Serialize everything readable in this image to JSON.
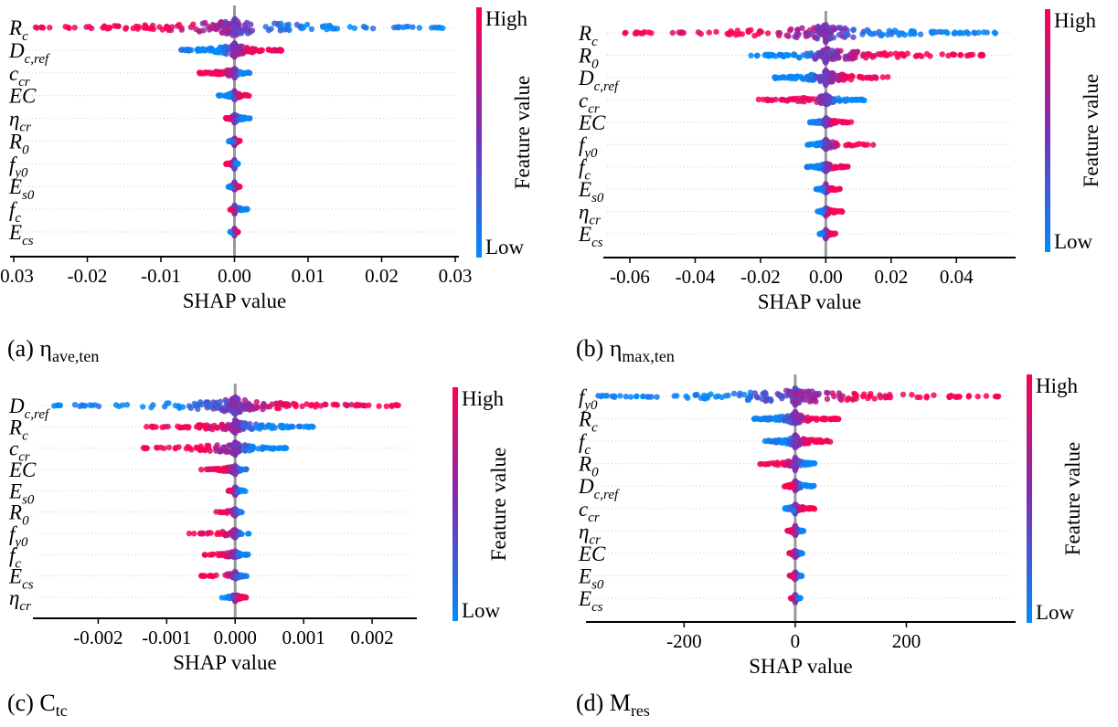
{
  "colors": {
    "high": "#ff0051",
    "low": "#008bfb",
    "axis": "#000000",
    "zero": "#999999",
    "grid": "#cccccc"
  },
  "colorbar": {
    "high_label": "High",
    "low_label": "Low",
    "title": "Feature value"
  },
  "chart_data": [
    {
      "type": "scatter",
      "subtype": "shap-beeswarm",
      "caption": {
        "main": "(a) η",
        "sub": "ave,ten"
      },
      "xlabel": "SHAP value",
      "xlim": [
        -0.03,
        0.03
      ],
      "ticks": [
        -0.03,
        -0.02,
        -0.01,
        0.0,
        0.01,
        0.02,
        0.03
      ],
      "tick_labels": [
        "-0.03",
        "-0.02",
        "-0.01",
        "0.00",
        "0.01",
        "0.02",
        "0.03"
      ],
      "features": [
        {
          "base": "R",
          "sub": "c",
          "min": -0.0285,
          "max": 0.029,
          "width": 1.0,
          "trend": "neg"
        },
        {
          "base": "D",
          "sub": "c,ref",
          "min": -0.0075,
          "max": 0.0068,
          "width": 0.7,
          "trend": "pos"
        },
        {
          "base": "c",
          "sub": "cr",
          "min": -0.0052,
          "max": 0.0021,
          "width": 0.35,
          "trend": "neg"
        },
        {
          "base": "EC",
          "sub": "",
          "min": -0.0022,
          "max": 0.0021,
          "width": 0.25,
          "trend": "pos"
        },
        {
          "base": "η",
          "sub": "cr",
          "min": -0.0012,
          "max": 0.0023,
          "width": 0.25,
          "trend": "neg"
        },
        {
          "base": "R",
          "sub": "0",
          "min": -0.0008,
          "max": 0.0008,
          "width": 0.2,
          "trend": "pos"
        },
        {
          "base": "f",
          "sub": "y0",
          "min": -0.0012,
          "max": 0.0005,
          "width": 0.2,
          "trend": "neg"
        },
        {
          "base": "E",
          "sub": "s0",
          "min": -0.0009,
          "max": 0.0008,
          "width": 0.2,
          "trend": "pos"
        },
        {
          "base": "f",
          "sub": "c",
          "min": -0.0006,
          "max": 0.0019,
          "width": 0.2,
          "trend": "neg"
        },
        {
          "base": "E",
          "sub": "cs",
          "min": -0.0006,
          "max": 0.0005,
          "width": 0.15,
          "trend": "pos"
        }
      ]
    },
    {
      "type": "scatter",
      "subtype": "shap-beeswarm",
      "caption": {
        "main": "(b) η",
        "sub": "max,ten"
      },
      "xlabel": "SHAP value",
      "xlim": [
        -0.067,
        0.057
      ],
      "ticks": [
        -0.06,
        -0.04,
        -0.02,
        0.0,
        0.02,
        0.04
      ],
      "tick_labels": [
        "-0.06",
        "-0.04",
        "-0.02",
        "0.00",
        "0.02",
        "0.04"
      ],
      "features": [
        {
          "base": "R",
          "sub": "c",
          "min": -0.065,
          "max": 0.052,
          "width": 1.0,
          "trend": "neg"
        },
        {
          "base": "R",
          "sub": "0",
          "min": -0.024,
          "max": 0.052,
          "width": 0.75,
          "trend": "pos"
        },
        {
          "base": "D",
          "sub": "c,ref",
          "min": -0.016,
          "max": 0.02,
          "width": 0.75,
          "trend": "pos"
        },
        {
          "base": "c",
          "sub": "cr",
          "min": -0.021,
          "max": 0.012,
          "width": 0.45,
          "trend": "neg"
        },
        {
          "base": "EC",
          "sub": "",
          "min": -0.005,
          "max": 0.008,
          "width": 0.3,
          "trend": "pos"
        },
        {
          "base": "f",
          "sub": "y0",
          "min": -0.006,
          "max": 0.016,
          "width": 0.3,
          "trend": "pos"
        },
        {
          "base": "f",
          "sub": "c",
          "min": -0.006,
          "max": 0.008,
          "width": 0.25,
          "trend": "pos"
        },
        {
          "base": "E",
          "sub": "s0",
          "min": -0.003,
          "max": 0.005,
          "width": 0.2,
          "trend": "pos"
        },
        {
          "base": "η",
          "sub": "cr",
          "min": -0.003,
          "max": 0.005,
          "width": 0.2,
          "trend": "pos"
        },
        {
          "base": "E",
          "sub": "cs",
          "min": -0.002,
          "max": 0.003,
          "width": 0.2,
          "trend": "pos"
        }
      ]
    },
    {
      "type": "scatter",
      "subtype": "shap-beeswarm",
      "caption": {
        "main": "(c) C",
        "sub": "tc"
      },
      "xlabel": "SHAP value",
      "xlim": [
        -0.0029,
        0.0026
      ],
      "ticks": [
        -0.002,
        -0.001,
        0.0,
        0.001,
        0.002
      ],
      "tick_labels": [
        "-0.002",
        "-0.001",
        "0.000",
        "0.001",
        "0.002"
      ],
      "features": [
        {
          "base": "D",
          "sub": "c,ref",
          "min": -0.0027,
          "max": 0.0024,
          "width": 1.0,
          "trend": "pos"
        },
        {
          "base": "R",
          "sub": "c",
          "min": -0.0013,
          "max": 0.00115,
          "width": 0.65,
          "trend": "neg"
        },
        {
          "base": "c",
          "sub": "cr",
          "min": -0.00155,
          "max": 0.00077,
          "width": 0.65,
          "trend": "neg"
        },
        {
          "base": "EC",
          "sub": "",
          "min": -0.0005,
          "max": 0.0002,
          "width": 0.3,
          "trend": "neg"
        },
        {
          "base": "E",
          "sub": "s0",
          "min": -0.0001,
          "max": 0.00015,
          "width": 0.2,
          "trend": "neg"
        },
        {
          "base": "R",
          "sub": "0",
          "min": -0.0003,
          "max": 0.0001,
          "width": 0.2,
          "trend": "neg"
        },
        {
          "base": "f",
          "sub": "y0",
          "min": -0.0007,
          "max": 0.0002,
          "width": 0.2,
          "trend": "neg"
        },
        {
          "base": "f",
          "sub": "c",
          "min": -0.0005,
          "max": 0.0002,
          "width": 0.2,
          "trend": "neg"
        },
        {
          "base": "E",
          "sub": "cs",
          "min": -0.0005,
          "max": 0.0002,
          "width": 0.2,
          "trend": "neg"
        },
        {
          "base": "η",
          "sub": "cr",
          "min": -0.0002,
          "max": 0.0002,
          "width": 0.2,
          "trend": "pos"
        }
      ]
    },
    {
      "type": "scatter",
      "subtype": "shap-beeswarm",
      "caption": {
        "main": "(d) M",
        "sub": "res"
      },
      "xlabel": "SHAP value",
      "xlim": [
        -370,
        390
      ],
      "ticks": [
        -200,
        0,
        200
      ],
      "tick_labels": [
        "-200",
        "0",
        "200"
      ],
      "features": [
        {
          "base": "f",
          "sub": "y0",
          "min": -365,
          "max": 375,
          "width": 1.0,
          "trend": "pos"
        },
        {
          "base": "R",
          "sub": "c",
          "min": -75,
          "max": 80,
          "width": 0.6,
          "trend": "pos"
        },
        {
          "base": "f",
          "sub": "c",
          "min": -55,
          "max": 70,
          "width": 0.6,
          "trend": "pos"
        },
        {
          "base": "R",
          "sub": "0",
          "min": -65,
          "max": 35,
          "width": 0.5,
          "trend": "neg"
        },
        {
          "base": "D",
          "sub": "c,ref",
          "min": -20,
          "max": 35,
          "width": 0.4,
          "trend": "neg"
        },
        {
          "base": "c",
          "sub": "cr",
          "min": -20,
          "max": 35,
          "width": 0.35,
          "trend": "pos"
        },
        {
          "base": "η",
          "sub": "cr",
          "min": -15,
          "max": 15,
          "width": 0.25,
          "trend": "neg"
        },
        {
          "base": "EC",
          "sub": "",
          "min": -12,
          "max": 15,
          "width": 0.2,
          "trend": "neg"
        },
        {
          "base": "E",
          "sub": "s0",
          "min": -10,
          "max": 12,
          "width": 0.2,
          "trend": "neg"
        },
        {
          "base": "E",
          "sub": "cs",
          "min": -8,
          "max": 10,
          "width": 0.15,
          "trend": "neg"
        }
      ]
    }
  ]
}
